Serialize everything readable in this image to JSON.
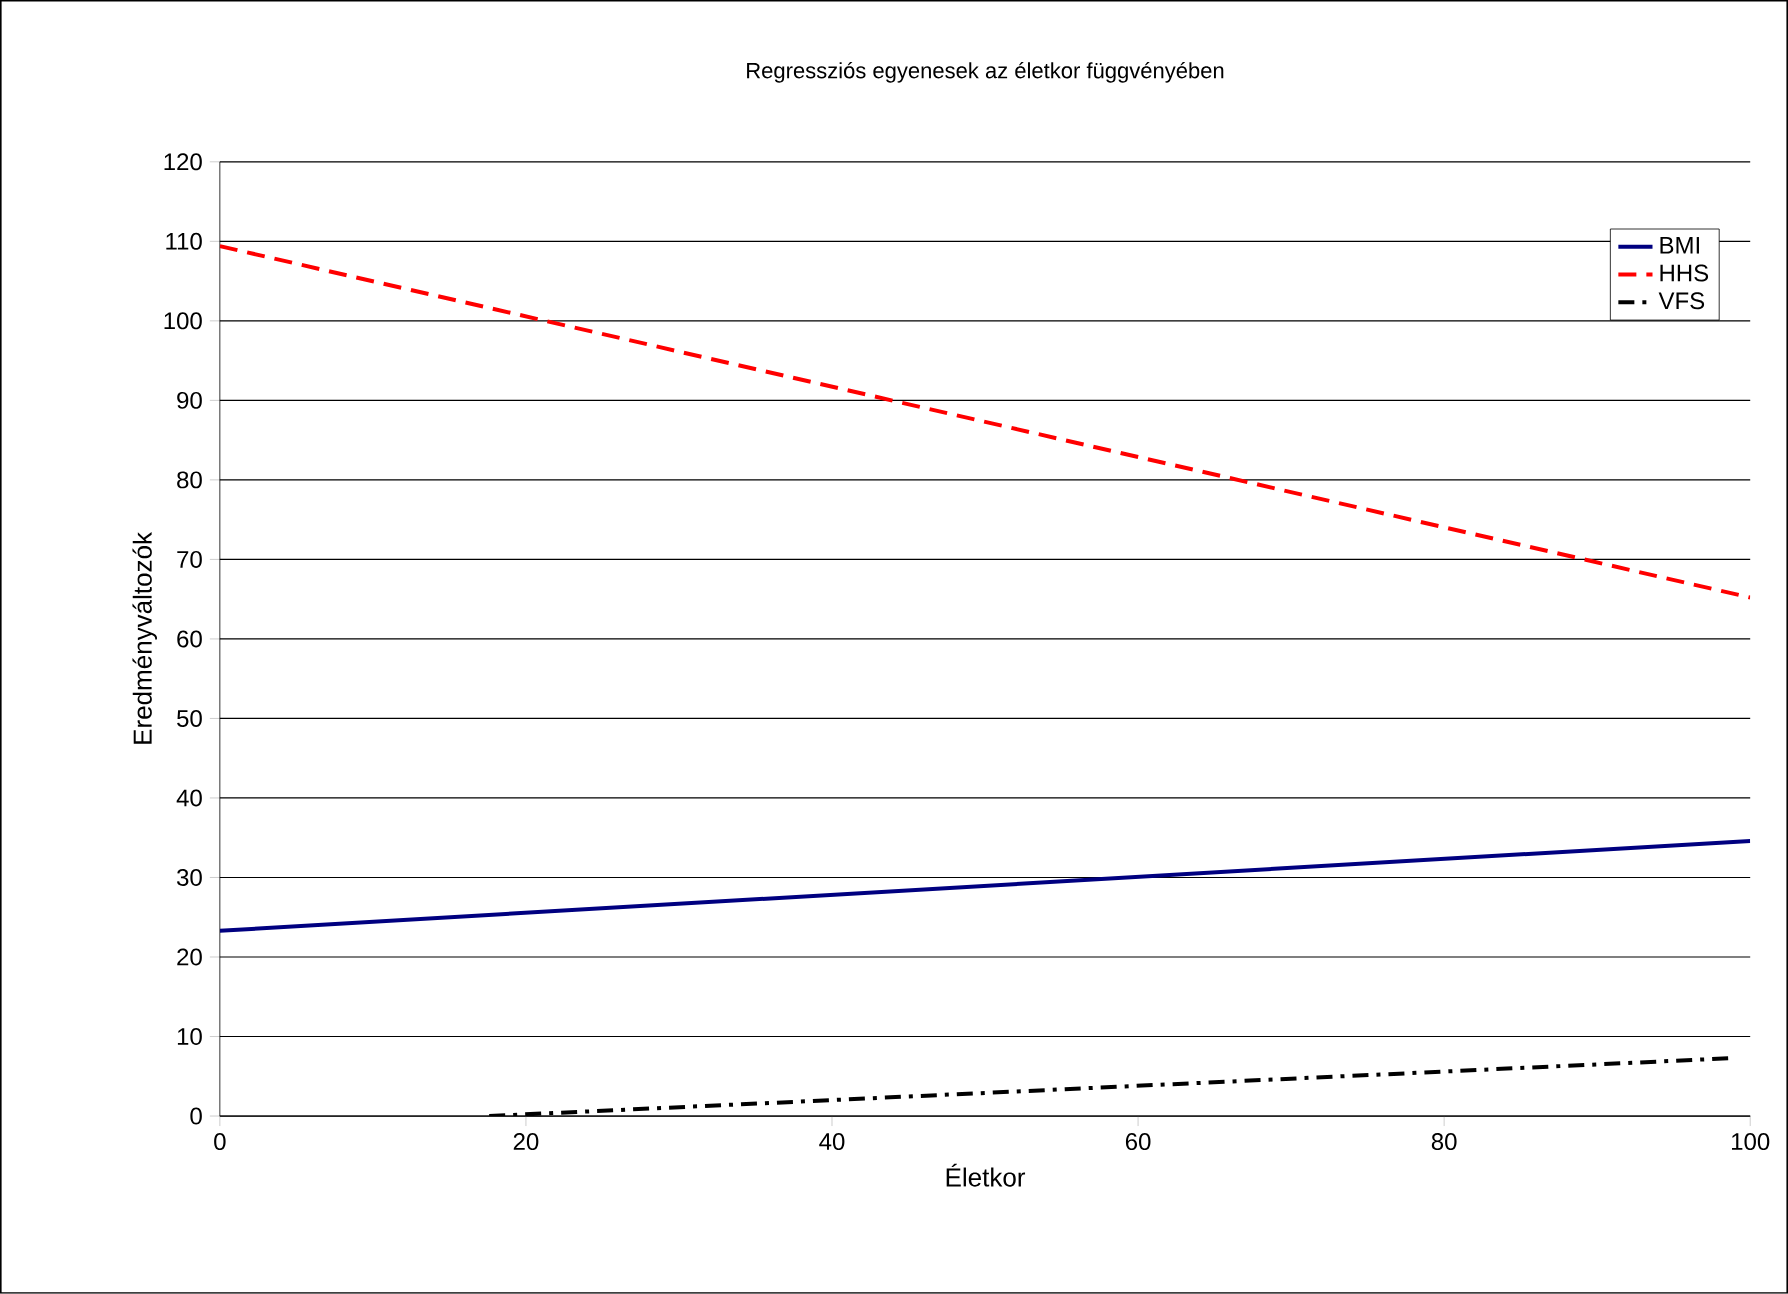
{
  "chart_data": {
    "type": "line",
    "title": "Regressziós egyenesek az életkor függvényében",
    "xlabel": "Életkor",
    "ylabel": "Eredményváltozók",
    "xlim": [
      0,
      100
    ],
    "xticks": [
      0,
      20,
      40,
      60,
      80,
      100
    ],
    "ylim": [
      0,
      120
    ],
    "yticks": [
      0,
      10,
      20,
      30,
      40,
      50,
      60,
      70,
      80,
      90,
      100,
      110,
      120
    ],
    "grid": "y",
    "legend": "top right",
    "marker": "none",
    "series": [
      {
        "name": "BMI",
        "color": "#000080",
        "line_style": "solid",
        "x": [
          0,
          100
        ],
        "values": [
          23.3,
          34.6
        ]
      },
      {
        "name": "HHS",
        "color": "#ff0000",
        "line_style": "dashed",
        "x": [
          0,
          100
        ],
        "values": [
          109.4,
          65.2
        ]
      },
      {
        "name": "VFS",
        "color": "#000000",
        "line_style": "dashdot",
        "x": [
          17.6,
          99
        ],
        "values": [
          0,
          7.3
        ]
      }
    ]
  }
}
